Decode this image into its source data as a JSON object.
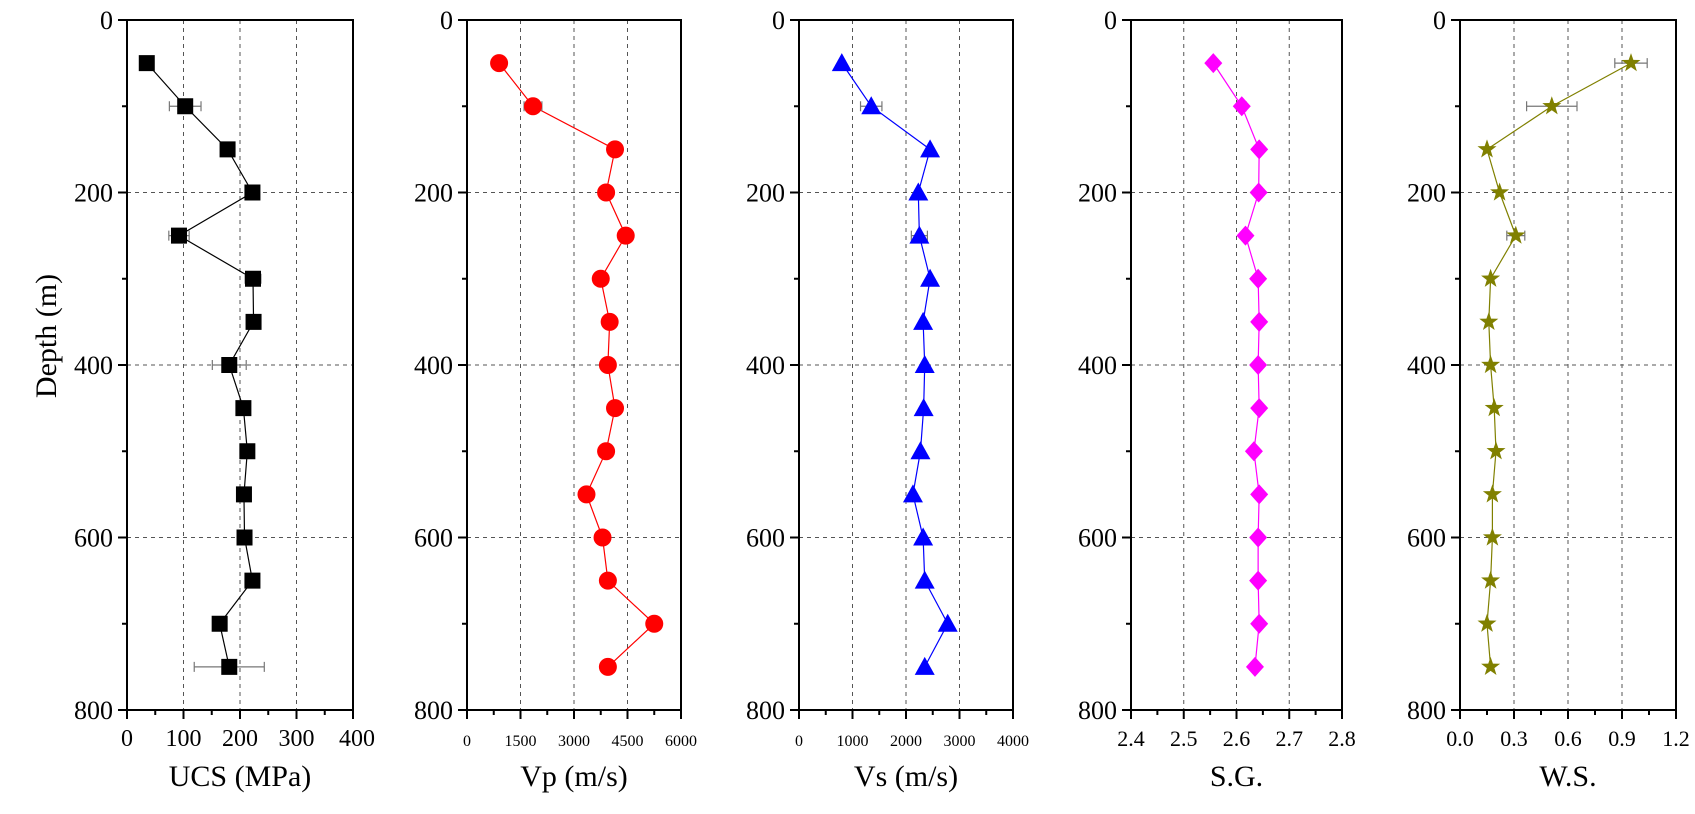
{
  "figure": {
    "depth_label": "Depth (m)"
  },
  "chart_data": [
    {
      "type": "scatter",
      "xlabel": "UCS (MPa)",
      "ylabel": "Depth (m)",
      "xlim": [
        0,
        400
      ],
      "ylim": [
        0,
        800
      ],
      "xticks": [
        "0",
        "100",
        "200",
        "300",
        "400"
      ],
      "yticks": [
        "0",
        "200",
        "400",
        "600",
        "800"
      ],
      "grid": true,
      "color": "#000000",
      "marker": "square",
      "series": [
        {
          "x": [
            35,
            103,
            178,
            222,
            92,
            223,
            224,
            181,
            206,
            213,
            207,
            208,
            222,
            164,
            181
          ],
          "y": [
            50,
            100,
            150,
            200,
            250,
            300,
            350,
            400,
            450,
            500,
            550,
            600,
            650,
            700,
            750
          ],
          "xerr": [
            0,
            28,
            12,
            5,
            18,
            14,
            5,
            30,
            5,
            8,
            5,
            7,
            5,
            5,
            62
          ]
        }
      ]
    },
    {
      "type": "scatter",
      "xlabel": "Vp (m/s)",
      "ylabel": "",
      "xlim": [
        0,
        6000
      ],
      "ylim": [
        0,
        800
      ],
      "xticks": [
        "0",
        "1500",
        "3000",
        "4500",
        "6000"
      ],
      "yticks": [
        "0",
        "200",
        "400",
        "600",
        "800"
      ],
      "grid": true,
      "color": "#ff0000",
      "marker": "circle",
      "series": [
        {
          "x": [
            900,
            1850,
            4150,
            3900,
            4450,
            3750,
            4000,
            3950,
            4150,
            3900,
            3350,
            3800,
            3950,
            5250,
            3950
          ],
          "y": [
            50,
            100,
            150,
            200,
            250,
            300,
            350,
            400,
            450,
            500,
            550,
            600,
            650,
            700,
            750
          ],
          "xerr": [
            0,
            250,
            0,
            0,
            0,
            0,
            0,
            0,
            0,
            0,
            0,
            0,
            0,
            0,
            0
          ]
        }
      ]
    },
    {
      "type": "scatter",
      "xlabel": "Vs (m/s)",
      "ylabel": "",
      "xlim": [
        0,
        4000
      ],
      "ylim": [
        0,
        800
      ],
      "xticks": [
        "0",
        "1000",
        "2000",
        "3000",
        "4000"
      ],
      "yticks": [
        "0",
        "200",
        "400",
        "600",
        "800"
      ],
      "grid": true,
      "color": "#0000ff",
      "marker": "triangle",
      "series": [
        {
          "x": [
            800,
            1350,
            2450,
            2230,
            2250,
            2450,
            2320,
            2350,
            2330,
            2270,
            2130,
            2320,
            2350,
            2780,
            2350
          ],
          "y": [
            50,
            100,
            150,
            200,
            250,
            300,
            350,
            400,
            450,
            500,
            550,
            600,
            650,
            700,
            750
          ],
          "xerr": [
            0,
            200,
            0,
            0,
            150,
            0,
            0,
            0,
            0,
            0,
            0,
            0,
            0,
            0,
            0
          ]
        }
      ]
    },
    {
      "type": "scatter",
      "xlabel": "S.G.",
      "ylabel": "",
      "xlim": [
        2.4,
        2.8
      ],
      "ylim": [
        0,
        800
      ],
      "xticks": [
        "2.4",
        "2.5",
        "2.6",
        "2.7",
        "2.8"
      ],
      "yticks": [
        "0",
        "200",
        "400",
        "600",
        "800"
      ],
      "grid": true,
      "color": "#ff00ff",
      "marker": "diamond",
      "series": [
        {
          "x": [
            2.556,
            2.61,
            2.643,
            2.642,
            2.617,
            2.641,
            2.643,
            2.641,
            2.643,
            2.633,
            2.643,
            2.641,
            2.641,
            2.643,
            2.635
          ],
          "y": [
            50,
            100,
            150,
            200,
            250,
            300,
            350,
            400,
            450,
            500,
            550,
            600,
            650,
            700,
            750
          ],
          "xerr": [
            0,
            0.008,
            0,
            0,
            0,
            0,
            0,
            0,
            0,
            0,
            0,
            0,
            0,
            0,
            0
          ]
        }
      ]
    },
    {
      "type": "scatter",
      "xlabel": "W.S.",
      "ylabel": "",
      "xlim": [
        0.0,
        1.2
      ],
      "ylim": [
        0,
        800
      ],
      "xticks": [
        "0.0",
        "0.3",
        "0.6",
        "0.9",
        "1.2"
      ],
      "yticks": [
        "0",
        "200",
        "400",
        "600",
        "800"
      ],
      "grid": true,
      "color": "#808000",
      "marker": "star",
      "series": [
        {
          "x": [
            0.95,
            0.51,
            0.15,
            0.22,
            0.31,
            0.17,
            0.16,
            0.17,
            0.19,
            0.2,
            0.18,
            0.18,
            0.17,
            0.15,
            0.17
          ],
          "y": [
            50,
            100,
            150,
            200,
            250,
            300,
            350,
            400,
            450,
            500,
            550,
            600,
            650,
            700,
            750
          ],
          "xerr": [
            0.09,
            0.14,
            0,
            0,
            0.05,
            0,
            0,
            0,
            0,
            0,
            0,
            0,
            0,
            0,
            0
          ]
        }
      ]
    }
  ]
}
